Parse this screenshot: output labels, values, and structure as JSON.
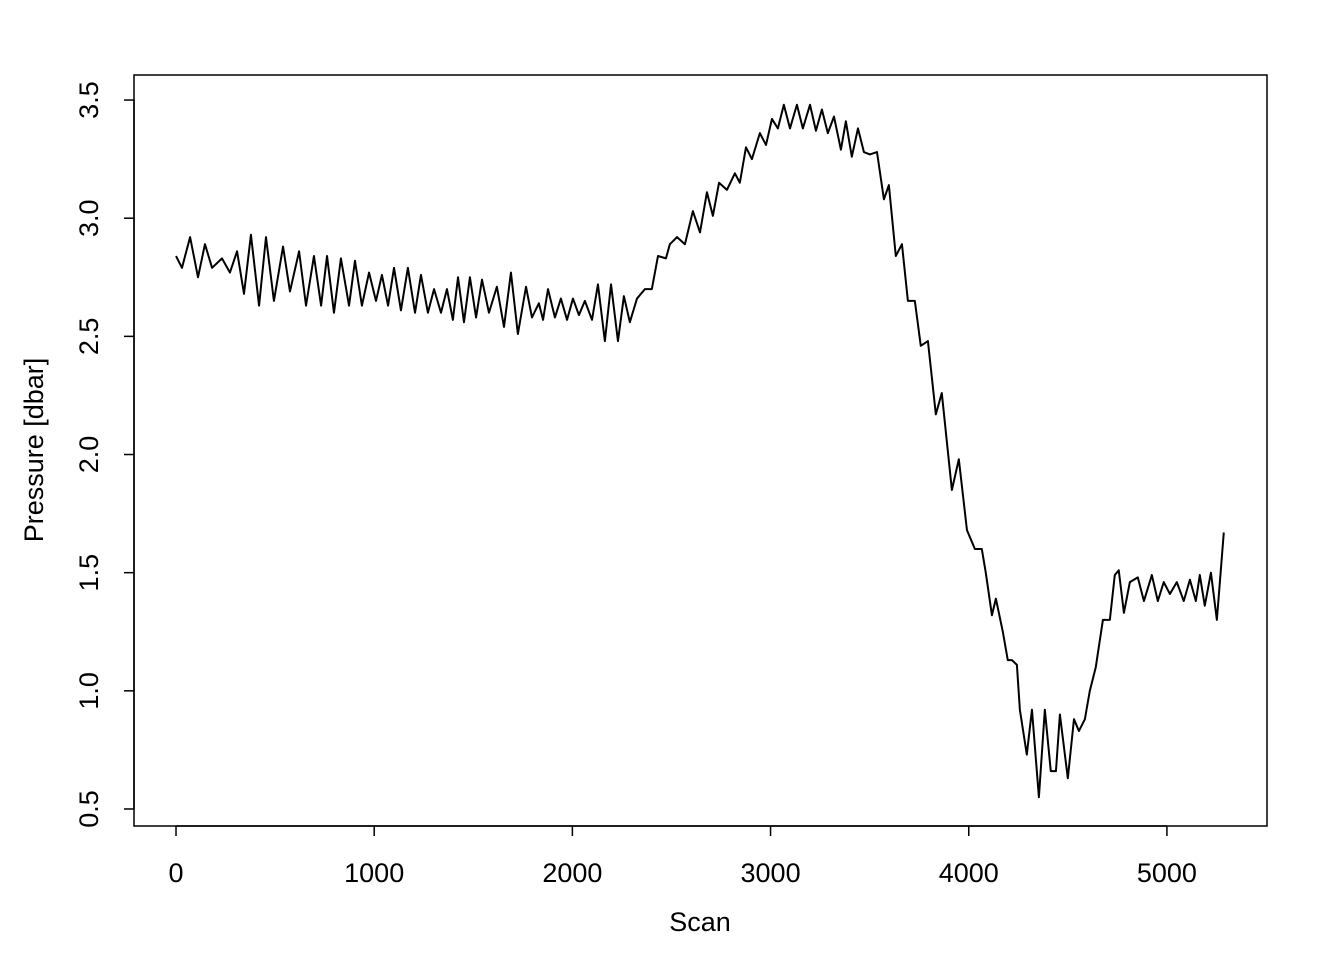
{
  "chart_data": {
    "type": "line",
    "x_label": "Scan",
    "y_label": "Pressure [dbar]",
    "color": "#000000",
    "x": [
      0,
      30,
      71,
      111,
      146,
      182,
      232,
      272,
      308,
      343,
      378,
      419,
      454,
      494,
      540,
      575,
      621,
      656,
      696,
      732,
      762,
      797,
      832,
      873,
      903,
      938,
      974,
      1009,
      1039,
      1070,
      1100,
      1135,
      1170,
      1206,
      1236,
      1271,
      1302,
      1337,
      1367,
      1397,
      1423,
      1453,
      1483,
      1514,
      1544,
      1579,
      1619,
      1655,
      1690,
      1725,
      1766,
      1796,
      1831,
      1852,
      1877,
      1912,
      1942,
      1973,
      2003,
      2033,
      2063,
      2099,
      2129,
      2164,
      2195,
      2230,
      2260,
      2290,
      2326,
      2366,
      2401,
      2432,
      2472,
      2492,
      2528,
      2568,
      2608,
      2644,
      2679,
      2709,
      2740,
      2780,
      2820,
      2845,
      2876,
      2906,
      2946,
      2977,
      3007,
      3037,
      3067,
      3098,
      3133,
      3163,
      3199,
      3229,
      3259,
      3289,
      3320,
      3355,
      3380,
      3410,
      3441,
      3471,
      3501,
      3537,
      3572,
      3597,
      3632,
      3663,
      3693,
      3728,
      3758,
      3794,
      3834,
      3864,
      3915,
      3950,
      3991,
      4031,
      4066,
      4086,
      4117,
      4137,
      4172,
      4197,
      4218,
      4243,
      4258,
      4293,
      4319,
      4354,
      4384,
      4414,
      4440,
      4460,
      4500,
      4531,
      4556,
      4586,
      4611,
      4641,
      4677,
      4712,
      4737,
      4757,
      4783,
      4813,
      4853,
      4884,
      4924,
      4954,
      4984,
      5015,
      5050,
      5085,
      5116,
      5146,
      5166,
      5191,
      5222,
      5252,
      5287
    ],
    "values": [
      2.84,
      2.79,
      2.92,
      2.75,
      2.89,
      2.79,
      2.83,
      2.77,
      2.86,
      2.68,
      2.93,
      2.63,
      2.92,
      2.65,
      2.88,
      2.69,
      2.86,
      2.63,
      2.84,
      2.63,
      2.84,
      2.6,
      2.83,
      2.63,
      2.82,
      2.63,
      2.77,
      2.65,
      2.76,
      2.63,
      2.79,
      2.61,
      2.79,
      2.6,
      2.76,
      2.6,
      2.7,
      2.6,
      2.7,
      2.57,
      2.75,
      2.56,
      2.75,
      2.58,
      2.74,
      2.6,
      2.71,
      2.54,
      2.77,
      2.51,
      2.71,
      2.58,
      2.64,
      2.57,
      2.7,
      2.58,
      2.66,
      2.57,
      2.66,
      2.59,
      2.65,
      2.57,
      2.72,
      2.48,
      2.72,
      2.48,
      2.67,
      2.56,
      2.66,
      2.7,
      2.7,
      2.84,
      2.83,
      2.89,
      2.92,
      2.89,
      3.03,
      2.94,
      3.11,
      3.01,
      3.15,
      3.12,
      3.19,
      3.15,
      3.3,
      3.25,
      3.36,
      3.31,
      3.42,
      3.38,
      3.48,
      3.38,
      3.48,
      3.38,
      3.48,
      3.37,
      3.46,
      3.36,
      3.43,
      3.29,
      3.41,
      3.26,
      3.38,
      3.28,
      3.27,
      3.28,
      3.08,
      3.14,
      2.84,
      2.89,
      2.65,
      2.65,
      2.46,
      2.48,
      2.17,
      2.26,
      1.85,
      1.98,
      1.68,
      1.6,
      1.6,
      1.5,
      1.32,
      1.39,
      1.25,
      1.13,
      1.13,
      1.11,
      0.92,
      0.73,
      0.92,
      0.55,
      0.92,
      0.66,
      0.66,
      0.9,
      0.63,
      0.88,
      0.83,
      0.88,
      1.0,
      1.1,
      1.3,
      1.3,
      1.49,
      1.51,
      1.33,
      1.46,
      1.48,
      1.38,
      1.49,
      1.38,
      1.46,
      1.41,
      1.46,
      1.38,
      1.47,
      1.38,
      1.49,
      1.36,
      1.5,
      1.3,
      1.67
    ],
    "xlim": [
      -212,
      5505
    ],
    "ylim": [
      0.428,
      3.606
    ],
    "xticks": [
      0,
      1000,
      2000,
      3000,
      4000,
      5000
    ],
    "yticks": [
      0.5,
      {
        "value": 1,
        "label": "1.0"
      },
      1.5,
      {
        "value": 2,
        "label": "2.0"
      },
      2.5,
      {
        "value": 3,
        "label": "3.0"
      },
      3.5
    ]
  }
}
